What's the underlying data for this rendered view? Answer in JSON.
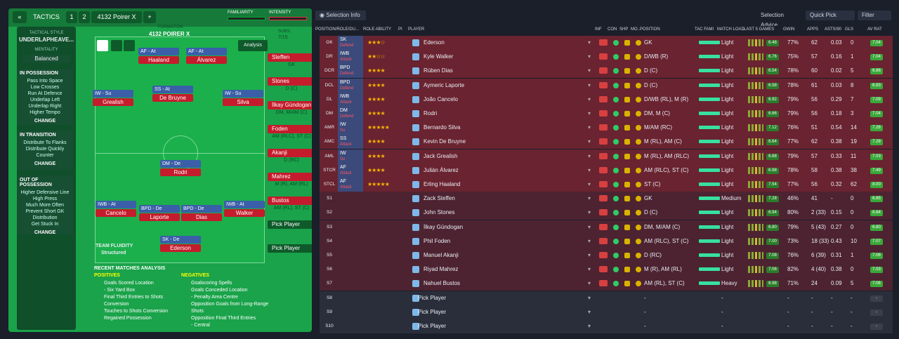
{
  "topbar": {
    "back": "«",
    "tactics": "TACTICS",
    "slot1": "1",
    "slot2": "2",
    "tactic_name": "4132 Poirer X",
    "add": "+",
    "familiarity": "FAMILIARITY",
    "intensity": "INTENSITY"
  },
  "sidebar": {
    "style_label": "TACTICAL STYLE",
    "style": "UNDERLAPHEAVE...",
    "mentality_label": "MENTALITY",
    "mentality": "Balanced",
    "in_possession": {
      "title": "IN POSSESSION",
      "items": [
        "Pass Into Space",
        "Low Crosses",
        "Run At Defence",
        "Underlap Left",
        "Underlap Right",
        "Higher Tempo"
      ],
      "change": "CHANGE"
    },
    "in_transition": {
      "title": "IN TRANSITION",
      "items": [
        "Distribute To Flanks",
        "Distribute Quickly",
        "Counter"
      ],
      "change": "CHANGE"
    },
    "out_of_possession": {
      "title": "OUT OF POSSESSION",
      "items": [
        "Higher Defensive Line",
        "High Press",
        "Much More Often",
        "Prevent Short GK",
        "Distribution",
        "Get Stuck In"
      ],
      "change": "CHANGE"
    }
  },
  "formation": {
    "label": "FORMATION",
    "name": "4132 POIRER X",
    "analysis": "Analysis",
    "subs_label": "SUBS:",
    "subs": "7/15",
    "fluidity_label": "TEAM FLUIDITY",
    "fluidity": "Structured"
  },
  "pitch": [
    {
      "role": "AF - At",
      "name": "Haaland"
    },
    {
      "role": "AF - At",
      "name": "Álvarez"
    },
    {
      "role": "IW - Su",
      "name": "Grealish"
    },
    {
      "role": "SS - At",
      "name": "De Bruyne"
    },
    {
      "role": "IW - Su",
      "name": "Silva"
    },
    {
      "role": "DM - De",
      "name": "Rodri"
    },
    {
      "role": "IWB - At",
      "name": "Cancelo"
    },
    {
      "role": "BPD - De",
      "name": "Laporte"
    },
    {
      "role": "BPD - De",
      "name": "Dias"
    },
    {
      "role": "IWB - At",
      "name": "Walker"
    },
    {
      "role": "SK - De",
      "name": "Ederson"
    }
  ],
  "subs": [
    {
      "name": "Steffen",
      "pos": "GK"
    },
    {
      "name": "Stones",
      "pos": "D (C)"
    },
    {
      "name": "İlkay Gündogan",
      "pos": "DM, M/AM (C)"
    },
    {
      "name": "Foden",
      "pos": "AM (RLC), ST (C)"
    },
    {
      "name": "Akanji",
      "pos": "D (RC)"
    },
    {
      "name": "Mahrez",
      "pos": "M (R), AM (RL)"
    },
    {
      "name": "Bustos",
      "pos": "AM (RL), ST (C)"
    },
    {
      "name": "Pick Player",
      "pos": ""
    },
    {
      "name": "Pick Player",
      "pos": ""
    }
  ],
  "recent": {
    "title": "RECENT MATCHES ANALYSIS",
    "positives_label": "POSITIVES",
    "negatives_label": "NEGATIVES",
    "positives": [
      "Goals Scored Location",
      "- Six Yard Box",
      "Final Third Entries to Shots",
      "Conversion",
      "Touches to Shots Conversion",
      "Regained Possession"
    ],
    "negatives": [
      "Goalscoring Spells",
      "Goals Conceded Location",
      "- Penalty Area Centre",
      "Opposition Goals from Long-Range",
      "Shots",
      "Opposition Final Third Entries",
      "- Central"
    ]
  },
  "right": {
    "selection_info": "Selection Info",
    "selection_advice": "Selection Advice",
    "quick_pick": "Quick Pick",
    "filter": "Filter"
  },
  "columns": [
    "POSITION/ROLE/DU...",
    "ROLE ABILITY",
    "PI",
    "PLAYER",
    "INF",
    "CON",
    "SHP",
    "MO...",
    "POSITION",
    "TAC FAMI",
    "MATCH LOAD",
    "LAST 5 GAMES",
    "GWIN",
    "APPS",
    "ASTS/90",
    "GLS",
    "AV RAT"
  ],
  "rows": [
    {
      "pos": "GK",
      "role": "SK",
      "duty": "Defend",
      "stars": "★★★☆",
      "player": "Ederson",
      "position": "GK",
      "load": "Light",
      "l5": "6.48",
      "gwin": "77%",
      "apps": "62",
      "asts": "0.03",
      "gls": "0",
      "avr": "7.04",
      "kind": "r1"
    },
    {
      "pos": "DR",
      "role": "IWB",
      "duty": "Attack",
      "stars": "★★☆☆",
      "player": "Kyle Walker",
      "position": "D/WB (R)",
      "load": "Light",
      "l5": "6.76",
      "gwin": "75%",
      "apps": "57",
      "asts": "0.16",
      "gls": "1",
      "avr": "7.04",
      "kind": "r1"
    },
    {
      "pos": "DCR",
      "role": "BPD",
      "duty": "Defend",
      "stars": "★★★★",
      "player": "Rúben Dias",
      "position": "D (C)",
      "load": "Light",
      "l5": "6.54",
      "gwin": "78%",
      "apps": "60",
      "asts": "0.02",
      "gls": "5",
      "avr": "6.86",
      "kind": "r1"
    },
    {
      "pos": "DCL",
      "role": "BPD",
      "duty": "Defend",
      "stars": "★★★★",
      "player": "Aymeric Laporte",
      "position": "D (C)",
      "load": "Light",
      "l5": "6.58",
      "gwin": "78%",
      "apps": "61",
      "asts": "0.03",
      "gls": "8",
      "avr": "6.93",
      "kind": "r1"
    },
    {
      "pos": "DL",
      "role": "IWB",
      "duty": "Attack",
      "stars": "★★★★",
      "player": "João Cancelo",
      "position": "D/WB (RL), M (R)",
      "load": "Light",
      "l5": "6.92",
      "gwin": "79%",
      "apps": "56",
      "asts": "0.29",
      "gls": "7",
      "avr": "7.09",
      "kind": "r1"
    },
    {
      "pos": "DM",
      "role": "DM",
      "duty": "Defend",
      "stars": "★★★★",
      "player": "Rodri",
      "position": "DM, M (C)",
      "load": "Light",
      "l5": "6.66",
      "gwin": "79%",
      "apps": "56",
      "asts": "0.18",
      "gls": "3",
      "avr": "7.04",
      "kind": "r1"
    },
    {
      "pos": "AMR",
      "role": "IW",
      "duty": "Su",
      "stars": "★★★★★",
      "player": "Bernardo Silva",
      "position": "M/AM (RC)",
      "load": "Light",
      "l5": "7.12",
      "gwin": "76%",
      "apps": "51",
      "asts": "0.54",
      "gls": "14",
      "avr": "7.26",
      "kind": "r1"
    },
    {
      "pos": "AMC",
      "role": "SS",
      "duty": "Attack",
      "stars": "★★★★",
      "player": "Kevin De Bruyne",
      "position": "M (RL), AM (C)",
      "load": "Light",
      "l5": "6.64",
      "gwin": "77%",
      "apps": "62",
      "asts": "0.38",
      "gls": "19",
      "avr": "7.28",
      "kind": "r1"
    },
    {
      "pos": "AML",
      "role": "IW",
      "duty": "Su",
      "stars": "★★★★",
      "player": "Jack Grealish",
      "position": "M (RL), AM (RLC)",
      "load": "Light",
      "l5": "6.88",
      "gwin": "79%",
      "apps": "57",
      "asts": "0.33",
      "gls": "11",
      "avr": "7.03",
      "kind": "r1"
    },
    {
      "pos": "STCR",
      "role": "AF",
      "duty": "Attack",
      "stars": "★★★★",
      "player": "Julián Álvarez",
      "position": "AM (RLC), ST (C)",
      "load": "Light",
      "l5": "6.98",
      "gwin": "78%",
      "apps": "58",
      "asts": "0.38",
      "gls": "38",
      "avr": "7.49",
      "kind": "r1"
    },
    {
      "pos": "STCL",
      "role": "AF",
      "duty": "Attack",
      "stars": "★★★★★",
      "player": "Erling Haaland",
      "position": "ST (C)",
      "load": "Light",
      "l5": "7.54",
      "gwin": "77%",
      "apps": "56",
      "asts": "0.32",
      "gls": "62",
      "avr": "8.00",
      "kind": "r1"
    },
    {
      "pos": "S1",
      "role": "",
      "duty": "",
      "stars": "",
      "player": "Zack Steffen",
      "position": "GK",
      "load": "Medium",
      "l5": "7.28",
      "gwin": "46%",
      "apps": "41",
      "asts": "-",
      "gls": "0",
      "avr": "6.85",
      "kind": "r2"
    },
    {
      "pos": "S2",
      "role": "",
      "duty": "",
      "stars": "",
      "player": "John Stones",
      "position": "D (C)",
      "load": "Light",
      "l5": "6.94",
      "gwin": "80%",
      "apps": "2 (33)",
      "asts": "0.15",
      "gls": "0",
      "avr": "6.84",
      "kind": "r2"
    },
    {
      "pos": "S3",
      "role": "",
      "duty": "",
      "stars": "",
      "player": "İlkay Gündogan",
      "position": "DM, M/AM (C)",
      "load": "Light",
      "l5": "6.80",
      "gwin": "79%",
      "apps": "5 (43)",
      "asts": "0.27",
      "gls": "0",
      "avr": "6.80",
      "kind": "r2"
    },
    {
      "pos": "S4",
      "role": "",
      "duty": "",
      "stars": "",
      "player": "Phil Foden",
      "position": "AM (RLC), ST (C)",
      "load": "Light",
      "l5": "7.00",
      "gwin": "73%",
      "apps": "18 (33)",
      "asts": "0.43",
      "gls": "10",
      "avr": "7.07",
      "kind": "r2"
    },
    {
      "pos": "S5",
      "role": "",
      "duty": "",
      "stars": "",
      "player": "Manuel Akanji",
      "position": "D (RC)",
      "load": "Light",
      "l5": "7.08",
      "gwin": "76%",
      "apps": "6 (39)",
      "asts": "0.31",
      "gls": "1",
      "avr": "7.06",
      "kind": "r2"
    },
    {
      "pos": "S6",
      "role": "",
      "duty": "",
      "stars": "",
      "player": "Riyad Mahrez",
      "position": "M (R), AM (RL)",
      "load": "Light",
      "l5": "7.06",
      "gwin": "82%",
      "apps": "4 (40)",
      "asts": "0.38",
      "gls": "0",
      "avr": "7.03",
      "kind": "r2"
    },
    {
      "pos": "S7",
      "role": "",
      "duty": "",
      "stars": "",
      "player": "Nahuel Bustos",
      "position": "AM (RL), ST (C)",
      "load": "Heavy",
      "l5": "6.98",
      "gwin": "71%",
      "apps": "24",
      "asts": "0.09",
      "gls": "5",
      "avr": "7.06",
      "kind": "r2"
    },
    {
      "pos": "S8",
      "role": "",
      "duty": "",
      "stars": "",
      "player": "Pick Player",
      "position": "-",
      "load": "-",
      "l5": "",
      "gwin": "-",
      "apps": "-",
      "asts": "-",
      "gls": "-",
      "avr": "-",
      "kind": "r3"
    },
    {
      "pos": "S9",
      "role": "",
      "duty": "",
      "stars": "",
      "player": "Pick Player",
      "position": "-",
      "load": "-",
      "l5": "",
      "gwin": "-",
      "apps": "-",
      "asts": "-",
      "gls": "-",
      "avr": "-",
      "kind": "r3"
    },
    {
      "pos": "S10",
      "role": "",
      "duty": "",
      "stars": "",
      "player": "Pick Player",
      "position": "-",
      "load": "-",
      "l5": "",
      "gwin": "-",
      "apps": "-",
      "asts": "-",
      "gls": "-",
      "avr": "-",
      "kind": "r3"
    }
  ]
}
